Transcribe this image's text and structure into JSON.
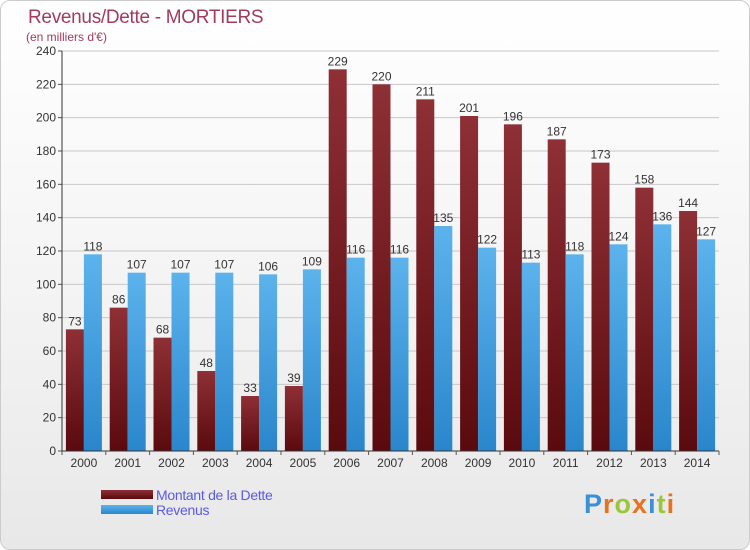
{
  "title": "Revenus/Dette - MORTIERS",
  "subtitle": "(en milliers d'€)",
  "legend": {
    "dette": "Montant de la Dette",
    "revenus": "Revenus"
  },
  "logo": {
    "letters": [
      "P",
      "r",
      "o",
      "x",
      "i",
      "t",
      "i"
    ]
  },
  "colors": {
    "dette": "#7a1f24",
    "revenus": "#3d9de0",
    "title": "#a23b5e",
    "legend_text": "#5a5ae6"
  },
  "chart_data": {
    "type": "bar",
    "title": "Revenus/Dette - MORTIERS",
    "ylabel": "(en milliers d'€)",
    "xlabel": "",
    "ylim": [
      0,
      240
    ],
    "yticks": [
      0,
      20,
      40,
      60,
      80,
      100,
      120,
      140,
      160,
      180,
      200,
      220,
      240
    ],
    "grid": true,
    "categories": [
      "2000",
      "2001",
      "2002",
      "2003",
      "2004",
      "2005",
      "2006",
      "2007",
      "2008",
      "2009",
      "2010",
      "2011",
      "2012",
      "2013",
      "2014"
    ],
    "series": [
      {
        "name": "Montant de la Dette",
        "values": [
          73,
          86,
          68,
          48,
          33,
          39,
          229,
          220,
          211,
          201,
          196,
          187,
          173,
          158,
          144
        ]
      },
      {
        "name": "Revenus",
        "values": [
          118,
          107,
          107,
          107,
          106,
          109,
          116,
          116,
          135,
          122,
          113,
          118,
          124,
          136,
          127
        ]
      }
    ]
  }
}
